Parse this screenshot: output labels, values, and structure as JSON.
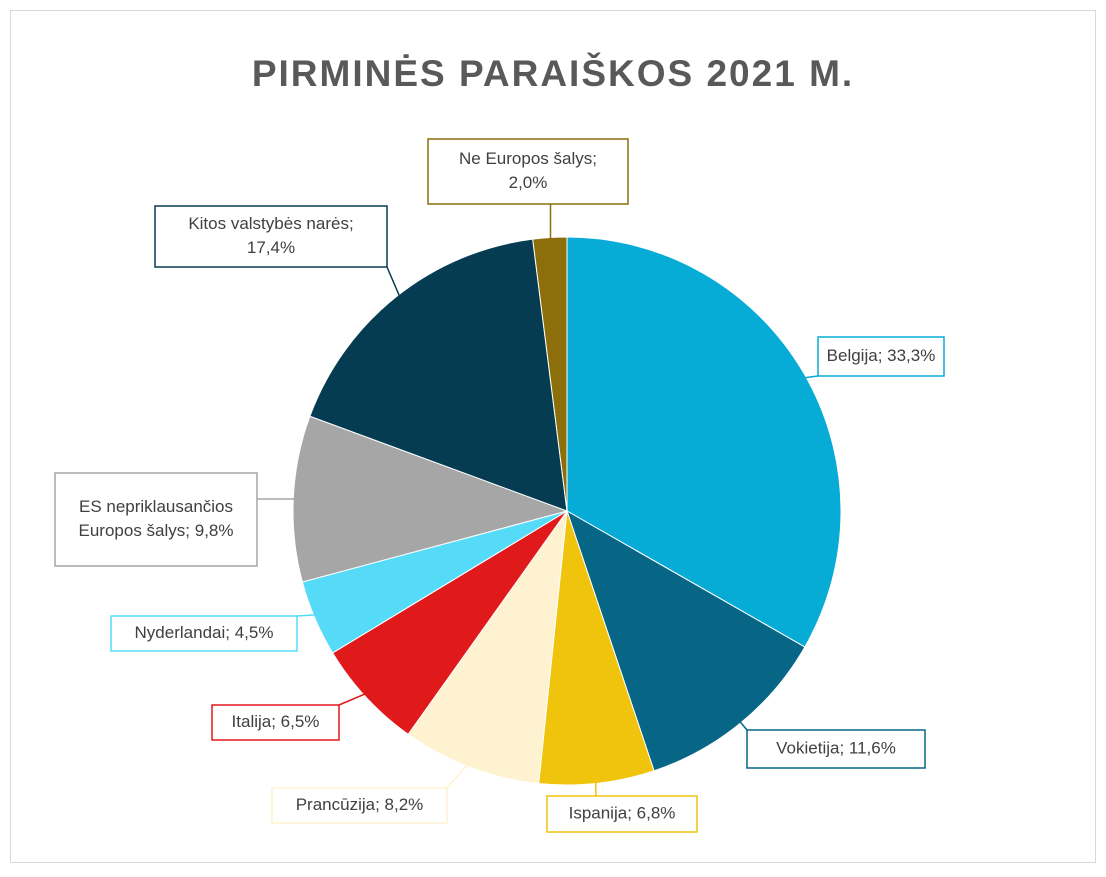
{
  "chart_data": {
    "type": "pie",
    "title": "PIRMINĖS PARAIŠKOS 2021 M.",
    "values": [
      33.3,
      11.6,
      6.8,
      8.2,
      6.5,
      4.5,
      9.8,
      17.4,
      2.0
    ],
    "value_labels": [
      [
        "Belgija; 33,3%"
      ],
      [
        "Vokietija; 11,6%"
      ],
      [
        "Ispanija; 6,8%"
      ],
      [
        "Prancūzija; 8,2%"
      ],
      [
        "Italija; 6,5%"
      ],
      [
        "Nyderlandai; 4,5%"
      ],
      [
        "ES nepriklausančios",
        "Europos šalys; 9,8%"
      ],
      [
        "Kitos valstybės narės;",
        "17,4%"
      ],
      [
        "Ne Europos šalys;",
        "2,0%"
      ]
    ],
    "colors": [
      "#06acd6",
      "#076586",
      "#f0c30c",
      "#fff2d0",
      "#e0191b",
      "#55dbf8",
      "#a6a6a6",
      "#053c52",
      "#8c6f0a"
    ]
  }
}
